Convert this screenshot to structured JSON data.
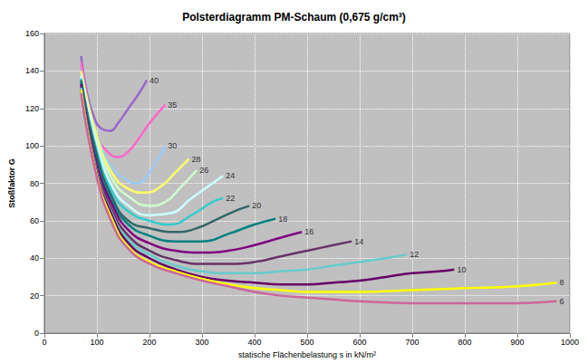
{
  "chart_data": {
    "type": "line",
    "title": "Polsterdiagramm PM-Schaum (0,675 g/cm³)",
    "x_label": "statische Flächenbelastung s in kN/m²",
    "y_label": "Stoßfaktor G",
    "xlim": [
      0,
      1000
    ],
    "xticks": [
      0,
      100,
      200,
      300,
      400,
      500,
      600,
      700,
      800,
      900,
      1000
    ],
    "ylim": [
      0,
      160
    ],
    "yticks": [
      0,
      20,
      40,
      60,
      80,
      100,
      120,
      140,
      160
    ],
    "grid": true,
    "legend": false,
    "series": [
      {
        "name": "40",
        "color": "#9966cc",
        "x": [
          70,
          80,
          95,
          110,
          125,
          140,
          160,
          180,
          195
        ],
        "values": [
          148,
          130,
          115,
          109,
          108,
          112,
          120,
          128,
          135
        ]
      },
      {
        "name": "35",
        "color": "#ff66cc",
        "x": [
          70,
          85,
          100,
          120,
          140,
          160,
          180,
          200,
          230
        ],
        "values": [
          145,
          120,
          105,
          97,
          94,
          97,
          104,
          112,
          122
        ]
      },
      {
        "name": "30",
        "color": "#99ccff",
        "x": [
          70,
          90,
          110,
          130,
          150,
          175,
          190,
          210,
          230
        ],
        "values": [
          140,
          115,
          98,
          88,
          83,
          80,
          82,
          90,
          100
        ]
      },
      {
        "name": "28",
        "color": "#ffff66",
        "x": [
          70,
          100,
          130,
          160,
          190,
          220,
          250,
          275
        ],
        "values": [
          140,
          105,
          85,
          77,
          75,
          78,
          86,
          93
        ]
      },
      {
        "name": "26",
        "color": "#ccffcc",
        "x": [
          70,
          100,
          130,
          160,
          200,
          230,
          260,
          290
        ],
        "values": [
          138,
          102,
          82,
          73,
          68,
          70,
          78,
          87
        ]
      },
      {
        "name": "24",
        "color": "#ccffff",
        "x": [
          70,
          100,
          130,
          160,
          200,
          240,
          280,
          320,
          340
        ],
        "values": [
          137,
          100,
          78,
          68,
          63,
          64,
          72,
          80,
          84
        ]
      },
      {
        "name": "22",
        "color": "#33cccc",
        "x": [
          70,
          100,
          130,
          160,
          200,
          240,
          280,
          320,
          340
        ],
        "values": [
          136,
          97,
          75,
          65,
          60,
          58,
          63,
          70,
          72
        ]
      },
      {
        "name": "20",
        "color": "#336666",
        "x": [
          70,
          100,
          130,
          160,
          200,
          250,
          290,
          330,
          370,
          390
        ],
        "values": [
          135,
          95,
          72,
          60,
          56,
          54,
          56,
          61,
          66,
          68
        ]
      },
      {
        "name": "18",
        "color": "#008080",
        "x": [
          70,
          100,
          130,
          160,
          200,
          250,
          300,
          350,
          400,
          440
        ],
        "values": [
          134,
          92,
          70,
          58,
          52,
          49,
          49,
          53,
          58,
          61
        ]
      },
      {
        "name": "16",
        "color": "#800080",
        "x": [
          70,
          100,
          130,
          160,
          200,
          250,
          300,
          350,
          400,
          450,
          490
        ],
        "values": [
          133,
          90,
          68,
          55,
          48,
          44,
          43,
          44,
          47,
          51,
          54
        ]
      },
      {
        "name": "14",
        "color": "#663366",
        "x": [
          70,
          100,
          130,
          160,
          200,
          250,
          300,
          350,
          400,
          450,
          500,
          550,
          585
        ],
        "values": [
          132,
          88,
          65,
          52,
          44,
          39,
          37,
          37,
          38,
          41,
          44,
          47,
          49
        ]
      },
      {
        "name": "12",
        "color": "#66cccc",
        "x": [
          70,
          100,
          130,
          160,
          200,
          250,
          300,
          350,
          400,
          450,
          500,
          550,
          600,
          650,
          690
        ],
        "values": [
          131,
          86,
          63,
          50,
          42,
          36,
          33,
          32,
          32,
          33,
          34,
          36,
          38,
          40,
          42
        ]
      },
      {
        "name": "10",
        "color": "#660066",
        "x": [
          70,
          100,
          130,
          160,
          200,
          250,
          300,
          350,
          400,
          450,
          500,
          550,
          600,
          650,
          700,
          750,
          780
        ],
        "values": [
          130,
          85,
          62,
          48,
          40,
          34,
          30,
          28,
          27,
          26,
          26,
          27,
          28,
          30,
          32,
          33,
          34
        ]
      },
      {
        "name": "8",
        "color": "#ffff00",
        "x": [
          70,
          100,
          130,
          160,
          200,
          250,
          300,
          350,
          400,
          450,
          500,
          550,
          600,
          700,
          800,
          900,
          975
        ],
        "values": [
          130,
          84,
          60,
          46,
          38,
          33,
          29,
          26,
          24,
          23,
          22,
          22,
          22,
          23,
          24,
          25,
          27
        ]
      },
      {
        "name": "6",
        "color": "#cc6699",
        "x": [
          70,
          100,
          130,
          160,
          200,
          250,
          300,
          350,
          400,
          450,
          500,
          550,
          600,
          700,
          800,
          900,
          975
        ],
        "values": [
          128,
          83,
          58,
          45,
          37,
          32,
          28,
          25,
          22,
          20,
          19,
          18,
          17,
          16,
          16,
          16,
          17
        ]
      }
    ]
  }
}
